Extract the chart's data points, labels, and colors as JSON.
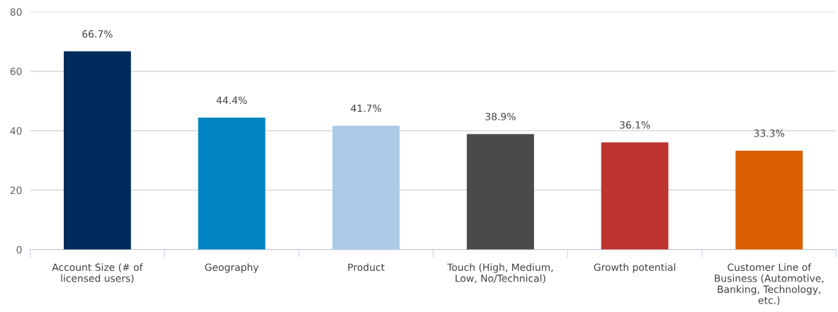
{
  "chart_data": {
    "type": "bar",
    "categories": [
      "Account Size (# of\nlicensed users)",
      "Geography",
      "Product",
      "Touch (High, Medium,\nLow, No/Technical)",
      "Growth potential",
      "Customer Line of\nBusiness (Automotive,\nBanking, Technology,\netc.)"
    ],
    "values": [
      66.7,
      44.4,
      41.7,
      38.9,
      36.1,
      33.3
    ],
    "colors": [
      "#002b5c",
      "#0083c1",
      "#abcae6",
      "#4a4a4c",
      "#bd3431",
      "#d95f00"
    ],
    "value_labels": [
      "66.7%",
      "44.4%",
      "41.7%",
      "38.9%",
      "36.1%",
      "33.3%"
    ],
    "ylim": [
      0,
      80
    ],
    "yticks": [
      0,
      20,
      40,
      60,
      80
    ],
    "grid": "y"
  }
}
